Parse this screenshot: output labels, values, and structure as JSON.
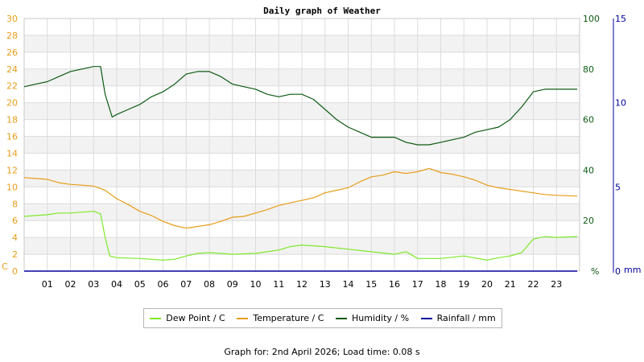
{
  "chart_data": {
    "type": "line",
    "title": "Daily graph of Weather",
    "x_ticks": [
      "01",
      "02",
      "03",
      "04",
      "05",
      "06",
      "07",
      "08",
      "09",
      "10",
      "11",
      "12",
      "13",
      "14",
      "15",
      "16",
      "17",
      "18",
      "19",
      "20",
      "21",
      "22",
      "23"
    ],
    "xlim": [
      0,
      24
    ],
    "left_axis": {
      "unit_label": "C",
      "ylim": [
        0,
        30
      ],
      "ticks": [
        0,
        2,
        4,
        6,
        8,
        10,
        12,
        14,
        16,
        18,
        20,
        22,
        24,
        26,
        28,
        30
      ],
      "color": "#e79d19"
    },
    "humidity_axis": {
      "unit_label": "%",
      "ylim": [
        0,
        100
      ],
      "ticks": [
        0,
        20,
        40,
        60,
        80,
        100
      ],
      "color": "#0c5a13"
    },
    "rain_axis": {
      "unit_label": "mm",
      "ylim": [
        0,
        15
      ],
      "ticks": [
        0,
        5,
        10,
        15
      ],
      "color": "#00009c"
    },
    "grid": true,
    "legend_position": "bottom",
    "series": [
      {
        "name": "Dew Point / C",
        "axis": "left",
        "color": "#7ee82a",
        "x": [
          0,
          0.5,
          1,
          1.5,
          2,
          2.5,
          3,
          3.3,
          3.5,
          3.7,
          4,
          5,
          6,
          6.5,
          7,
          7.5,
          8,
          9,
          10,
          11,
          11.5,
          12,
          12.5,
          13,
          14,
          15,
          16,
          16.5,
          17,
          17.5,
          18,
          19,
          20,
          20.5,
          21,
          21.5,
          22,
          22.5,
          23,
          23.9
        ],
        "values": [
          6.5,
          6.6,
          6.7,
          6.9,
          6.9,
          7.0,
          7.1,
          6.8,
          4.0,
          1.8,
          1.6,
          1.5,
          1.3,
          1.4,
          1.8,
          2.1,
          2.2,
          2.0,
          2.1,
          2.5,
          2.9,
          3.1,
          3.0,
          2.9,
          2.6,
          2.3,
          2.0,
          2.3,
          1.5,
          1.5,
          1.5,
          1.8,
          1.3,
          1.6,
          1.8,
          2.2,
          3.8,
          4.1,
          4.0,
          4.1
        ]
      },
      {
        "name": "Temperature / C",
        "axis": "left",
        "color": "#e79d19",
        "x": [
          0,
          0.5,
          1,
          1.5,
          2,
          2.5,
          3,
          3.5,
          4,
          4.5,
          5,
          5.5,
          6,
          6.5,
          7,
          7.5,
          8,
          8.5,
          9,
          9.5,
          10,
          10.5,
          11,
          11.5,
          12,
          12.5,
          13,
          13.5,
          14,
          14.5,
          15,
          15.5,
          16,
          16.5,
          17,
          17.5,
          18,
          18.5,
          19,
          19.5,
          20,
          20.5,
          21,
          21.5,
          22,
          22.5,
          23,
          23.9
        ],
        "values": [
          11.1,
          11.0,
          10.9,
          10.5,
          10.3,
          10.2,
          10.1,
          9.6,
          8.6,
          7.9,
          7.1,
          6.6,
          5.9,
          5.4,
          5.1,
          5.3,
          5.5,
          5.9,
          6.4,
          6.5,
          6.9,
          7.3,
          7.8,
          8.1,
          8.4,
          8.7,
          9.3,
          9.6,
          9.9,
          10.6,
          11.2,
          11.4,
          11.8,
          11.6,
          11.8,
          12.2,
          11.7,
          11.5,
          11.2,
          10.8,
          10.2,
          9.9,
          9.7,
          9.5,
          9.3,
          9.1,
          9.0,
          8.9
        ]
      },
      {
        "name": "Humidity / %",
        "axis": "humidity",
        "color": "#0c5a13",
        "x": [
          0,
          0.5,
          1,
          1.5,
          2,
          2.5,
          3,
          3.3,
          3.5,
          3.8,
          4,
          4.5,
          5,
          5.5,
          6,
          6.5,
          7,
          7.5,
          8,
          8.5,
          9,
          9.5,
          10,
          10.5,
          11,
          11.5,
          12,
          12.5,
          13,
          13.5,
          14,
          14.5,
          15,
          15.5,
          16,
          16.5,
          17,
          17.5,
          18,
          18.5,
          19,
          19.5,
          20,
          20.5,
          21,
          21.5,
          22,
          22.5,
          23,
          23.9
        ],
        "values": [
          73,
          74,
          75,
          77,
          79,
          80,
          81,
          81,
          70,
          61,
          62,
          64,
          66,
          69,
          71,
          74,
          78,
          79,
          79,
          77,
          74,
          73,
          72,
          70,
          69,
          70,
          70,
          68,
          64,
          60,
          57,
          55,
          53,
          53,
          53,
          51,
          50,
          50,
          51,
          52,
          53,
          55,
          56,
          57,
          60,
          65,
          71,
          72,
          72,
          72
        ]
      },
      {
        "name": "Rainfall / mm",
        "axis": "rain",
        "color": "#00009c",
        "x": [
          0,
          23.9
        ],
        "values": [
          0,
          0
        ]
      }
    ]
  },
  "footer": {
    "text": "Graph for: 2nd April 2026; Load time: 0.08 s"
  }
}
